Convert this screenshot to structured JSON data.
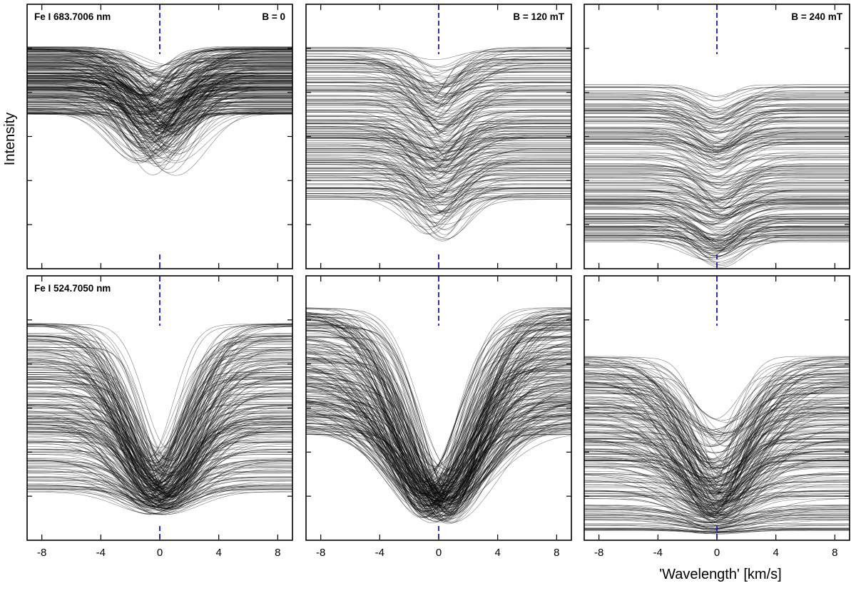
{
  "ylabel": "Intensity",
  "xlabel": "'Wavelength' [km/s]",
  "chart_data": [
    {
      "type": "line",
      "row": 1,
      "col": 1,
      "line_label": "Fe I 683.7006 nm",
      "field_label": "B = 0",
      "xlim": [
        -9,
        9
      ],
      "ylim": [
        0,
        1
      ],
      "xticks": [
        "-8",
        "-4",
        "0",
        "4",
        "8"
      ],
      "x_ticks_values": [
        -8,
        -4,
        0,
        4,
        8
      ],
      "profiles": {
        "count": 260,
        "continuum_range": [
          0.58,
          0.84
        ],
        "depth_range": [
          0.05,
          0.25
        ],
        "width_range": [
          1.6,
          3.0
        ],
        "shift_range": [
          -1.6,
          1.2
        ],
        "seed": 11
      }
    },
    {
      "type": "line",
      "row": 1,
      "col": 2,
      "line_label": "",
      "field_label": "B = 120 mT",
      "xlim": [
        -9,
        9
      ],
      "ylim": [
        0,
        1
      ],
      "xticks": [
        "-8",
        "-4",
        "0",
        "4",
        "8"
      ],
      "x_ticks_values": [
        -8,
        -4,
        0,
        4,
        8
      ],
      "profiles": {
        "count": 220,
        "continuum_range": [
          0.26,
          0.84
        ],
        "depth_range": [
          0.04,
          0.18
        ],
        "width_range": [
          1.4,
          2.8
        ],
        "shift_range": [
          -0.8,
          0.8
        ],
        "seed": 23
      }
    },
    {
      "type": "line",
      "row": 1,
      "col": 3,
      "line_label": "",
      "field_label": "B = 240 mT",
      "xlim": [
        -9,
        9
      ],
      "ylim": [
        0,
        1
      ],
      "xticks": [
        "-8",
        "-4",
        "0",
        "4",
        "8"
      ],
      "x_ticks_values": [
        -8,
        -4,
        0,
        4,
        8
      ],
      "profiles": {
        "count": 230,
        "continuum_range": [
          0.1,
          0.7
        ],
        "depth_range": [
          0.03,
          0.12
        ],
        "width_range": [
          1.3,
          2.6
        ],
        "shift_range": [
          -0.5,
          0.5
        ],
        "seed": 37
      }
    },
    {
      "type": "line",
      "row": 2,
      "col": 1,
      "line_label": "Fe I 524.7050 nm",
      "field_label": "",
      "xlim": [
        -9,
        9
      ],
      "ylim": [
        0,
        1
      ],
      "xticks": [
        "-8",
        "-4",
        "0",
        "4",
        "8"
      ],
      "x_ticks_values": [
        -8,
        -4,
        0,
        4,
        8
      ],
      "profiles": {
        "count": 240,
        "continuum_range": [
          0.18,
          0.82
        ],
        "depth_relative": [
          0.6,
          0.9
        ],
        "floor": 0.08,
        "width_range": [
          2.2,
          3.6
        ],
        "shift_range": [
          -0.9,
          0.9
        ],
        "seed": 51
      }
    },
    {
      "type": "line",
      "row": 2,
      "col": 2,
      "line_label": "",
      "field_label": "",
      "xlim": [
        -9,
        9
      ],
      "ylim": [
        0,
        1
      ],
      "xticks": [
        "-8",
        "-4",
        "0",
        "4",
        "8"
      ],
      "x_ticks_values": [
        -8,
        -4,
        0,
        4,
        8
      ],
      "profiles": {
        "count": 240,
        "continuum_range": [
          0.4,
          0.88
        ],
        "depth_relative": [
          0.7,
          0.95
        ],
        "floor": 0.04,
        "width_range": [
          2.6,
          4.6
        ],
        "shift_range": [
          -1.2,
          1.0
        ],
        "seed": 67
      }
    },
    {
      "type": "line",
      "row": 2,
      "col": 3,
      "line_label": "",
      "field_label": "",
      "xlim": [
        -9,
        9
      ],
      "ylim": [
        0,
        1
      ],
      "xticks": [
        "-8",
        "-4",
        "0",
        "4",
        "8"
      ],
      "x_ticks_values": [
        -8,
        -4,
        0,
        4,
        8
      ],
      "profiles": {
        "count": 250,
        "continuum_range": [
          0.03,
          0.7
        ],
        "depth_relative": [
          0.3,
          0.85
        ],
        "floor": 0.02,
        "width_range": [
          1.8,
          4.2
        ],
        "shift_range": [
          -0.7,
          0.7
        ],
        "seed": 83
      }
    }
  ]
}
